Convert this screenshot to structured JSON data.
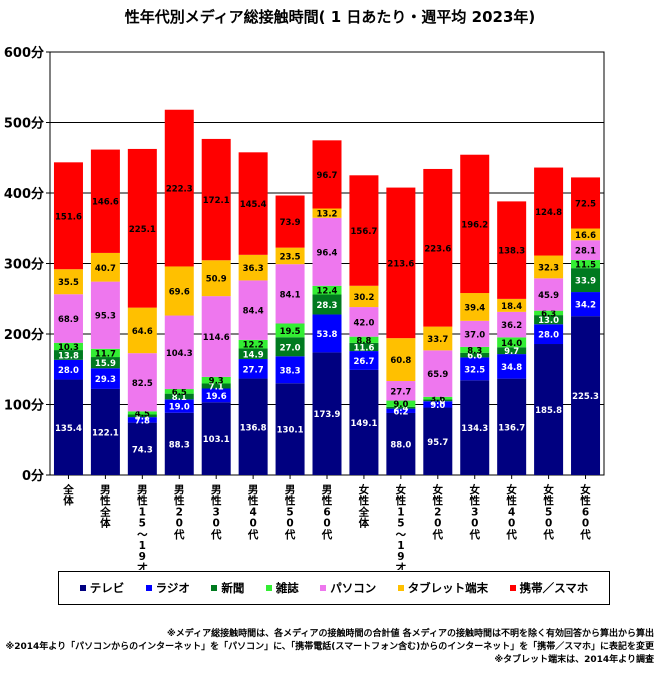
{
  "title": "性年代別メディア総接触時間( 1 日あたり・週平均 2023年)",
  "chart_data": {
    "type": "bar",
    "stacked": true,
    "ylim": [
      0,
      600
    ],
    "yticks": [
      "0分",
      "100分",
      "200分",
      "300分",
      "400分",
      "500分",
      "600分"
    ],
    "ytick_values": [
      0,
      100,
      200,
      300,
      400,
      500,
      600
    ],
    "categories": [
      "全体",
      "男性全体",
      "男性15〜19才",
      "男性20代",
      "男性30代",
      "男性40代",
      "男性50代",
      "男性60代",
      "女性全体",
      "女性15〜19才",
      "女性20代",
      "女性30代",
      "女性40代",
      "女性50代",
      "女性60代"
    ],
    "series": [
      {
        "name": "テレビ",
        "color": "#000080",
        "values": [
          135.4,
          122.1,
          74.3,
          88.3,
          103.1,
          136.8,
          130.1,
          173.9,
          149.1,
          88.0,
          95.7,
          134.3,
          136.7,
          185.8,
          225.3
        ]
      },
      {
        "name": "ラジオ",
        "color": "#0000ff",
        "values": [
          28.0,
          29.3,
          7.8,
          19.0,
          19.6,
          27.7,
          38.3,
          53.8,
          26.7,
          6.2,
          9.0,
          32.5,
          34.8,
          28.0,
          34.2
        ]
      },
      {
        "name": "新聞",
        "color": "#007a1f",
        "values": [
          13.8,
          15.9,
          3.7,
          8.1,
          7.1,
          14.9,
          27.0,
          28.3,
          11.6,
          2.4,
          2.6,
          6.6,
          9.7,
          13.0,
          33.9
        ]
      },
      {
        "name": "雑誌",
        "color": "#33ee33",
        "values": [
          10.3,
          11.7,
          4.5,
          6.5,
          9.3,
          12.2,
          19.5,
          12.4,
          8.8,
          9.0,
          3.6,
          8.3,
          14.0,
          6.3,
          11.5
        ]
      },
      {
        "name": "パソコン",
        "color": "#ee77ee",
        "values": [
          68.9,
          95.3,
          82.5,
          104.3,
          114.6,
          84.4,
          84.1,
          96.4,
          42.0,
          27.7,
          65.9,
          37.0,
          36.2,
          45.9,
          28.1
        ]
      },
      {
        "name": "タブレット端末",
        "color": "#ffc000",
        "values": [
          35.5,
          40.7,
          64.6,
          69.6,
          50.9,
          36.3,
          23.5,
          13.2,
          30.2,
          60.8,
          33.7,
          39.4,
          18.4,
          32.3,
          16.6
        ]
      },
      {
        "name": "携帯／スマホ",
        "color": "#ff0000",
        "values": [
          151.6,
          146.6,
          225.1,
          222.3,
          172.1,
          145.4,
          73.9,
          96.7,
          156.7,
          213.6,
          223.6,
          196.2,
          138.3,
          124.8,
          72.5
        ]
      }
    ],
    "grid": true,
    "legend": "bottom"
  },
  "notes": [
    "※メディア総接触時間は、各メディアの接触時間の合計値 各メディアの接触時間は不明を除く有効回答から算出から算出",
    "※2014年より「パソコンからのインターネット」を「パソコン」に、「携帯電話(スマートフォン含む)からのインターネット」を「携帯／スマホ」に表記を変更",
    "※タブレット端末は、2014年より調査"
  ]
}
